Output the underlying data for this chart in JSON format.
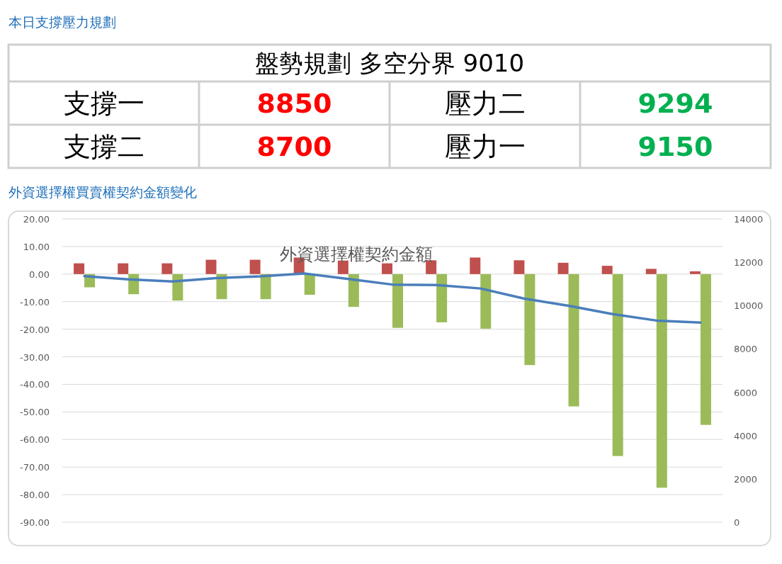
{
  "chart_data": [
    {
      "type": "other",
      "title": "本日支撐壓力規劃",
      "annotations": [
        "盤勢規劃 多空分界 9010",
        "支撐一",
        "8850",
        "壓力二",
        "9294",
        "支撐二",
        "8700",
        "壓力一",
        "9150"
      ]
    },
    {
      "type": "bar",
      "title": "外資選擇權買賣權契約金額變化",
      "subtitle": "外資選擇權契約金額",
      "categories": [
        null,
        null,
        null,
        null,
        null,
        null,
        null,
        null,
        null,
        null,
        null,
        null,
        null,
        null,
        null
      ],
      "series": [
        {
          "type": "bar",
          "color": "#c0504d",
          "values": [
            3.9,
            3.9,
            3.9,
            5.2,
            5.2,
            6.0,
            4.9,
            3.9,
            5.0,
            6.0,
            5.0,
            4.1,
            3.0,
            1.9,
            1.0
          ]
        },
        {
          "type": "bar",
          "color": "#9bbb59",
          "values": [
            -4.8,
            -7.3,
            -9.6,
            -9.1,
            -9.1,
            -7.5,
            -11.9,
            -19.5,
            -17.5,
            -19.8,
            -33.0,
            -48.0,
            -66.0,
            -77.5,
            -54.7
          ]
        },
        {
          "type": "line",
          "axis": "y2",
          "color": "#4a7ebb",
          "values": [
            11360,
            11210,
            11110,
            11270,
            11350,
            11480,
            11230,
            10970,
            10950,
            10790,
            10320,
            9990,
            9610,
            9310,
            9220
          ]
        }
      ],
      "ylim": [
        -90,
        20
      ],
      "yticks": [
        {
          "value": 20,
          "label": "20.00"
        },
        {
          "value": 10,
          "label": "10.00"
        },
        {
          "value": 0,
          "label": "0.00"
        },
        {
          "value": -10,
          "label": "-10.00"
        },
        {
          "value": -20,
          "label": "-20.00"
        },
        {
          "value": -30,
          "label": "-30.00"
        },
        {
          "value": -40,
          "label": "-40.00"
        },
        {
          "value": -50,
          "label": "-50.00"
        },
        {
          "value": -60,
          "label": "-60.00"
        },
        {
          "value": -70,
          "label": "-70.00"
        },
        {
          "value": -80,
          "label": "-80.00"
        },
        {
          "value": -90,
          "label": "-90.00"
        }
      ],
      "y2lim": [
        0,
        14000
      ],
      "y2ticks": [
        0,
        2000,
        4000,
        6000,
        8000,
        10000,
        12000,
        14000
      ],
      "grid": "y",
      "marker": "none"
    }
  ]
}
